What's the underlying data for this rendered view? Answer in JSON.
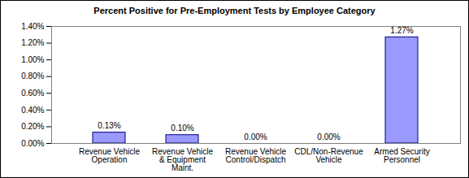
{
  "chart_data": {
    "type": "bar",
    "title": "Percent Positive for Pre-Employment Tests by Employee Category",
    "categories": [
      "Revenue Vehicle Operation",
      "Revenue Vehicle & Equipment Maint.",
      "Revenue Vehicle Control/Dispatch",
      "CDL/Non-Revenue Vehicle",
      "Armed Security Personnel"
    ],
    "values": [
      0.13,
      0.1,
      0.0,
      0.0,
      1.27
    ],
    "value_labels": [
      "0.13%",
      "0.10%",
      "0.00%",
      "0.00%",
      "1.27%"
    ],
    "color": "#9999ff",
    "ylim": [
      0,
      1.4
    ],
    "yticks": [
      {
        "value": 0,
        "label": "0.00%"
      },
      {
        "value": 0.2,
        "label": "0.20%"
      },
      {
        "value": 0.4,
        "label": "0.40%"
      },
      {
        "value": 0.6,
        "label": "0.60%"
      },
      {
        "value": 0.8,
        "label": "0.80%"
      },
      {
        "value": 1.0,
        "label": "1.00%"
      },
      {
        "value": 1.2,
        "label": "1.20%"
      },
      {
        "value": 1.4,
        "label": "1.40%"
      }
    ],
    "grid": false,
    "data_labels": true
  }
}
